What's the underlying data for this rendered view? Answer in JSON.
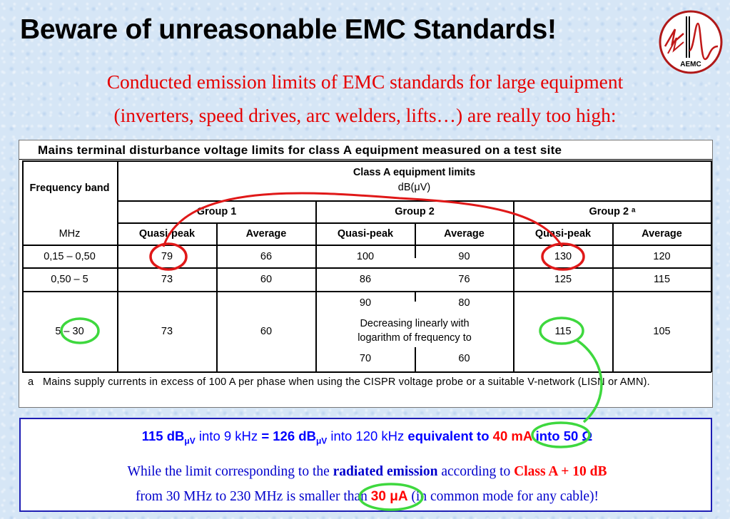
{
  "title": "Beware of unreasonable EMC Standards!",
  "logo_text": "AEMC",
  "subtitle_line1": "Conducted emission limits of EMC standards for large equipment",
  "subtitle_line2": "(inverters, speed drives, arc welders, lifts…) are really too high:",
  "table": {
    "title": "Mains terminal disturbance voltage limits for class A equipment measured on a test site",
    "freq_header": "Frequency band",
    "freq_unit": "MHz",
    "limits_header": "Class A equipment limits",
    "limits_unit": "dB(μV)",
    "groups": [
      "Group 1",
      "Group 2",
      "Group 2 ᵃ"
    ],
    "subcols": [
      "Quasi-peak",
      "Average",
      "Quasi-peak",
      "Average",
      "Quasi-peak",
      "Average"
    ],
    "rows": [
      {
        "band": "0,15 – 0,50",
        "values": [
          "79",
          "66",
          "100",
          "90",
          "130",
          "120"
        ]
      },
      {
        "band": "0,50 – 5",
        "values": [
          "73",
          "60",
          "86",
          "76",
          "125",
          "115"
        ]
      },
      {
        "band": "5 – 30",
        "values": [
          "73",
          "60",
          "",
          "",
          "115",
          "105"
        ]
      }
    ],
    "group2_upper_qp": "90",
    "group2_upper_avg": "80",
    "group2_note_line1": "Decreasing linearly with",
    "group2_note_line2": "logarithm of frequency to",
    "group2_lower_qp": "70",
    "group2_lower_avg": "60",
    "footnote_mark": "a",
    "footnote_text": "Mains supply currents in excess of 100 A per phase when using the CISPR voltage probe or a suitable V-network (LISN or AMN)."
  },
  "bottom": {
    "l1_a": "115 dB",
    "l1_a_sub": "μV",
    "l1_b": " into 9 kHz ",
    "l1_c": "= 126 dB",
    "l1_c_sub": "μV",
    "l1_d": " into 120 kHz ",
    "l1_e": "equivalent  to ",
    "l1_f": "40 mA",
    "l1_g": " into 50 Ω",
    "l2_a": "While the limit corresponding to the ",
    "l2_b": "radiated emission",
    "l2_c": " according to ",
    "l2_d": "Class A + 10 dB",
    "l3_a": "from 30 MHz to 230 MHz is smaller than ",
    "l3_b": "30 μA",
    "l3_c": " (in common mode for any cable)!"
  },
  "colors": {
    "title_red": "#e60000",
    "box_border": "#1e1eb4",
    "text_blue": "#0000ff",
    "ellipse_red": "#e01818",
    "ellipse_green": "#3ed83e"
  },
  "icons": [
    "aemc-logo-icon"
  ]
}
